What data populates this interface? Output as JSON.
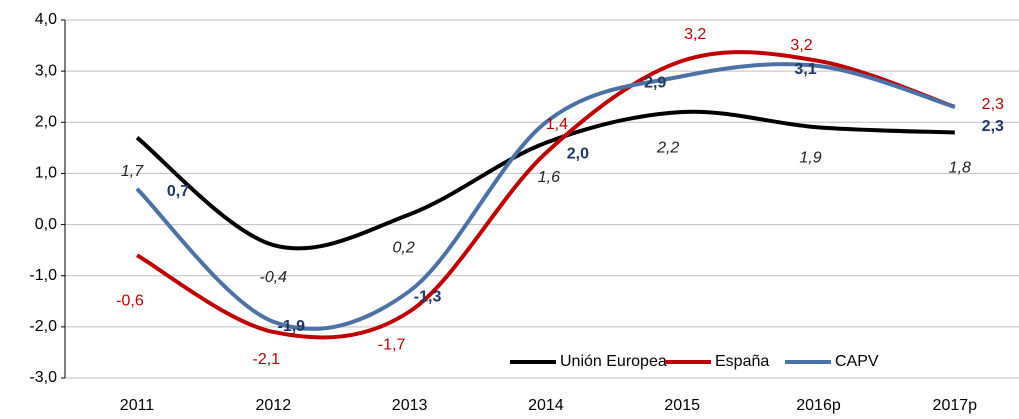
{
  "chart_data": {
    "type": "line",
    "categories": [
      "2011",
      "2012",
      "2013",
      "2014",
      "2015",
      "2016p",
      "2017p"
    ],
    "series": [
      {
        "name": "Unión Europea",
        "color": "#000000",
        "values": [
          1.7,
          -0.4,
          0.2,
          1.6,
          2.2,
          1.9,
          1.8
        ],
        "value_labels": [
          "1,7",
          "-0,4",
          "0,2",
          "1,6",
          "2,2",
          "1,9",
          "1,8"
        ]
      },
      {
        "name": "España",
        "color": "#c00000",
        "values": [
          -0.6,
          -2.1,
          -1.7,
          1.4,
          3.2,
          3.2,
          2.3
        ],
        "value_labels": [
          "-0,6",
          "-2,1",
          "-1,7",
          "1,4",
          "3,2",
          "3,2",
          "2,3"
        ]
      },
      {
        "name": "CAPV",
        "color": "#4a72a6",
        "values": [
          0.7,
          -1.9,
          -1.3,
          2.0,
          2.9,
          3.1,
          2.3
        ],
        "value_labels": [
          "0,7",
          "-1,9",
          "-1,3",
          "2,0",
          "2,9",
          "3,1",
          "2,3"
        ]
      }
    ],
    "ylim": [
      -3,
      4
    ],
    "yticks": [
      {
        "value": -3,
        "label": "-3,0"
      },
      {
        "value": -2,
        "label": "-2,0"
      },
      {
        "value": -1,
        "label": "-1,0"
      },
      {
        "value": 0,
        "label": "0,0"
      },
      {
        "value": 1,
        "label": "1,0"
      },
      {
        "value": 2,
        "label": "2,0"
      },
      {
        "value": 3,
        "label": "3,0"
      },
      {
        "value": 4,
        "label": "4,0"
      }
    ],
    "grid": true
  }
}
